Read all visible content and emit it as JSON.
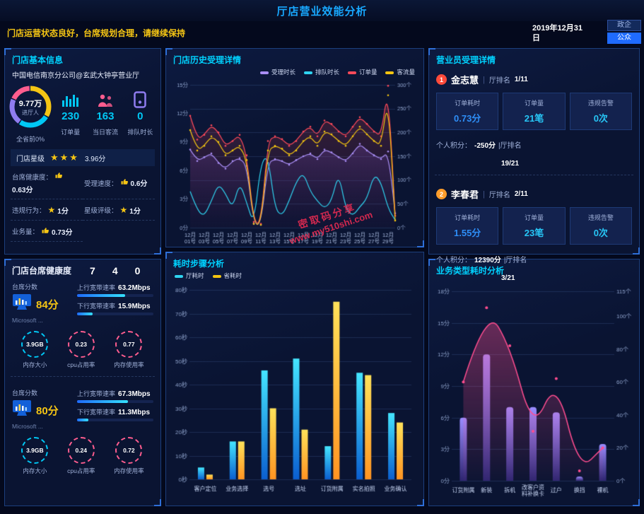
{
  "theme": {
    "bg": "#04091d",
    "panel": "#0a1432",
    "border": "#1c3f7d",
    "cyan": "#00c8f5",
    "yellow": "#f5c514",
    "pink": "#ff5d8f",
    "purple": "#8f7cf0",
    "blue": "#2e8ef7",
    "red": "#ff4a5a"
  },
  "header": {
    "title": "厅店营业效能分析",
    "subtitle": "门店运营状态良好，台席规划合理，请继续保持",
    "date_line1": "2019年12月31",
    "date_line2": "日",
    "btn_gov": "政企",
    "btn_public": "公众"
  },
  "watermark": {
    "line1": "密取码分享",
    "line2": "www.my510shi.com"
  },
  "basic_info": {
    "title": "门店基本信息",
    "store_name": "中国电信南京分公司@玄武大钟亭营业厅",
    "gauge_value": "9.77万",
    "gauge_label": "进厅人",
    "gauge_sub": "全省前0%",
    "gauge_segments": [
      {
        "color": "#f5c514",
        "frac": 0.34
      },
      {
        "color": "#00c8f5",
        "frac": 0.26
      },
      {
        "color": "#8f7cf0",
        "frac": 0.22
      },
      {
        "color": "#ff5d8f",
        "frac": 0.18
      }
    ],
    "stats": [
      {
        "value": "230",
        "label": "订单量"
      },
      {
        "value": "163",
        "label": "当日客流"
      },
      {
        "value": "0",
        "label": "排队时长"
      }
    ],
    "star_row_label": "门店星级",
    "star_count": 3,
    "star_score": "3.96分",
    "metrics": [
      {
        "label": "台席健康度：",
        "icon": "thumb",
        "value": "0.63分"
      },
      {
        "label": "受理速度：",
        "icon": "thumb",
        "value": "0.6分"
      },
      {
        "label": "违规行为：",
        "icon": "star",
        "value": "1分"
      },
      {
        "label": "星级评级：",
        "icon": "star",
        "value": "1分"
      },
      {
        "label": "业务量：",
        "icon": "thumb",
        "value": "0.73分"
      }
    ]
  },
  "desk_health": {
    "title": "门店台席健康度",
    "counts": [
      "7",
      "4",
      "0"
    ],
    "desks": [
      {
        "score_label": "台席分数",
        "score": "84分",
        "os": "Microsoft ...",
        "up_label": "上行宽带速率",
        "up_value": "63.2Mbps",
        "up_pct": 63,
        "down_label": "下行宽带速率",
        "down_value": "15.9Mbps",
        "down_pct": 20,
        "gauges": [
          {
            "value": "3.9GB",
            "label": "内存大小",
            "color": "#00c8f5"
          },
          {
            "value": "0.23",
            "label": "cpu占用率",
            "color": "#ff5d8f"
          },
          {
            "value": "0.77",
            "label": "内存使用率",
            "color": "#ff5d8f"
          }
        ]
      },
      {
        "score_label": "台席分数",
        "score": "80分",
        "os": "Microsoft ...",
        "up_label": "上行宽带速率",
        "up_value": "67.3Mbps",
        "up_pct": 67,
        "down_label": "下行宽带速率",
        "down_value": "11.3Mbps",
        "down_pct": 15,
        "gauges": [
          {
            "value": "3.9GB",
            "label": "内存大小",
            "color": "#00c8f5"
          },
          {
            "value": "0.24",
            "label": "cpu占用率",
            "color": "#ff5d8f"
          },
          {
            "value": "0.72",
            "label": "内存使用率",
            "color": "#ff5d8f"
          }
        ]
      }
    ]
  },
  "history_panel": {
    "title": "门店历史受理详情"
  },
  "steps_panel": {
    "title": "耗时步骤分析"
  },
  "biz_panel": {
    "title": "业务类型耗时分析"
  },
  "staff": {
    "title": "营业员受理详情",
    "persons": [
      {
        "rank": "1",
        "name": "金志慧",
        "rank_sep": "|",
        "rank_label": "厅排名",
        "rank_value": "1/11",
        "cards": [
          {
            "label": "订单耗时",
            "value": "0.73分"
          },
          {
            "label": "订单量",
            "value": "21笔"
          },
          {
            "label": "违规告警",
            "value": "0次"
          }
        ],
        "points_label": "个人积分：",
        "points_value": "-250分",
        "sub_rank_label": "|厅排名",
        "sub_rank_value": "19/21"
      },
      {
        "rank": "2",
        "name": "李春君",
        "rank_sep": "|",
        "rank_label": "厅排名",
        "rank_value": "2/11",
        "cards": [
          {
            "label": "订单耗时",
            "value": "1.55分"
          },
          {
            "label": "订单量",
            "value": "23笔"
          },
          {
            "label": "违规告警",
            "value": "0次"
          }
        ],
        "points_label": "个人积分：",
        "points_value": "12390分",
        "sub_rank_label": "|厅排名",
        "sub_rank_value": "3/21"
      }
    ]
  },
  "chart_data": [
    {
      "id": "history",
      "type": "line",
      "title": "门店历史受理详情",
      "legend": [
        "受理时长",
        "排队时长",
        "订单量",
        "客流量"
      ],
      "colors": [
        "#a98ef5",
        "#2fd3f0",
        "#ff4a5a",
        "#f3c411"
      ],
      "x_month": "12月",
      "x": [
        "01号",
        "02号",
        "03号",
        "04号",
        "05号",
        "06号",
        "07号",
        "08号",
        "09号",
        "10号",
        "11号",
        "12号",
        "13号",
        "14号",
        "15号",
        "16号",
        "17号",
        "18号",
        "19号",
        "20号",
        "21号",
        "22号",
        "23号",
        "24号",
        "25号",
        "26号",
        "27号",
        "28号",
        "29号",
        "30号"
      ],
      "left_axis": {
        "unit": "分",
        "max": 15,
        "ticks": [
          0,
          3,
          6,
          9,
          12,
          15
        ]
      },
      "right_axis": {
        "unit": "个",
        "max": 300,
        "ticks": [
          0,
          50,
          100,
          150,
          200,
          250,
          300
        ]
      },
      "series": [
        {
          "name": "受理时长",
          "axis": "left",
          "dots": true,
          "fill": [
            "rgba(138,108,245,0.50)",
            "rgba(30,18,80,0.06)"
          ],
          "values": [
            8.2,
            7.0,
            7.4,
            7.8,
            6.8,
            6.2,
            7.0,
            7.3,
            6.5,
            0.4,
            0.3,
            6.8,
            7.2,
            7.0,
            6.6,
            7.1,
            7.5,
            7.8,
            7.2,
            8.2,
            7.9,
            7.4,
            7.0,
            7.8,
            8.8,
            8.1,
            7.6,
            7.2,
            8.0,
            1.5
          ]
        },
        {
          "name": "排队时长",
          "axis": "left",
          "dots": false,
          "values": [
            3.8,
            1.8,
            1.2,
            2.8,
            4.6,
            3.6,
            2.0,
            4.8,
            2.6,
            0.3,
            6.8,
            7.6,
            2.0,
            1.2,
            2.8,
            4.8,
            5.8,
            3.8,
            2.8,
            2.0,
            2.8,
            5.8,
            2.0,
            1.2,
            2.2,
            3.0,
            5.6,
            4.8,
            2.0,
            0.8
          ]
        },
        {
          "name": "订单量",
          "axis": "right",
          "dots": true,
          "fill": [
            "rgba(255,74,90,0.22)",
            "rgba(255,74,90,0.02)"
          ],
          "values": [
            235,
            185,
            195,
            215,
            200,
            172,
            182,
            195,
            152,
            12,
            8,
            182,
            192,
            186,
            172,
            182,
            202,
            212,
            192,
            225,
            218,
            202,
            192,
            212,
            232,
            218,
            202,
            192,
            298,
            25
          ]
        },
        {
          "name": "客流量",
          "axis": "right",
          "dots": true,
          "values": [
            205,
            162,
            172,
            192,
            180,
            152,
            162,
            172,
            142,
            8,
            6,
            162,
            172,
            166,
            152,
            162,
            182,
            192,
            172,
            202,
            196,
            182,
            172,
            192,
            212,
            196,
            182,
            172,
            278,
            15
          ]
        }
      ]
    },
    {
      "id": "steps",
      "type": "bar",
      "title": "耗时步骤分析",
      "legend": [
        "厅耗时",
        "省耗时"
      ],
      "colors": [
        "#2fd3f0",
        "#f3c411"
      ],
      "gradients": [
        [
          "#45e6ff",
          "#0b5fd0"
        ],
        [
          "#ffe25a",
          "#ff9422"
        ]
      ],
      "categories": [
        "客户定位",
        "业务选择",
        "选号",
        "选址",
        "订货附属",
        "实名拍照",
        "业务确认"
      ],
      "y_axis": {
        "unit": "秒",
        "max": 80,
        "ticks": [
          0,
          10,
          20,
          30,
          40,
          50,
          60,
          70,
          80
        ]
      },
      "series": [
        {
          "name": "厅耗时",
          "values": [
            5,
            16,
            46,
            51,
            14,
            45,
            28
          ]
        },
        {
          "name": "省耗时",
          "values": [
            2,
            16,
            30,
            21,
            75,
            44,
            24
          ]
        }
      ]
    },
    {
      "id": "biztype",
      "type": "combo",
      "title": "业务类型耗时分析",
      "categories": [
        "订货附属",
        "新装",
        "拆机",
        "改客户资料补换卡",
        "过户",
        "换挡",
        "裸机"
      ],
      "left_axis": {
        "unit": "分",
        "max": 18,
        "ticks": [
          0,
          3,
          6,
          9,
          12,
          15,
          18
        ]
      },
      "right_axis": {
        "unit": "个",
        "max": 115,
        "ticks": [
          0,
          20,
          40,
          60,
          80,
          100,
          115
        ]
      },
      "bar_gradient": [
        "#9a8cff",
        "#2e2570"
      ],
      "line_color": "#ff4d8f",
      "area": [
        "rgba(255,77,143,0.45)",
        "rgba(255,77,143,0.02)"
      ],
      "series": [
        {
          "type": "bar",
          "axis": "left",
          "values": [
            6,
            12,
            7,
            7,
            6.5,
            0.4,
            3.5
          ]
        },
        {
          "type": "line",
          "axis": "right",
          "values": [
            60,
            105,
            82,
            30,
            62,
            6,
            20
          ]
        }
      ]
    }
  ]
}
